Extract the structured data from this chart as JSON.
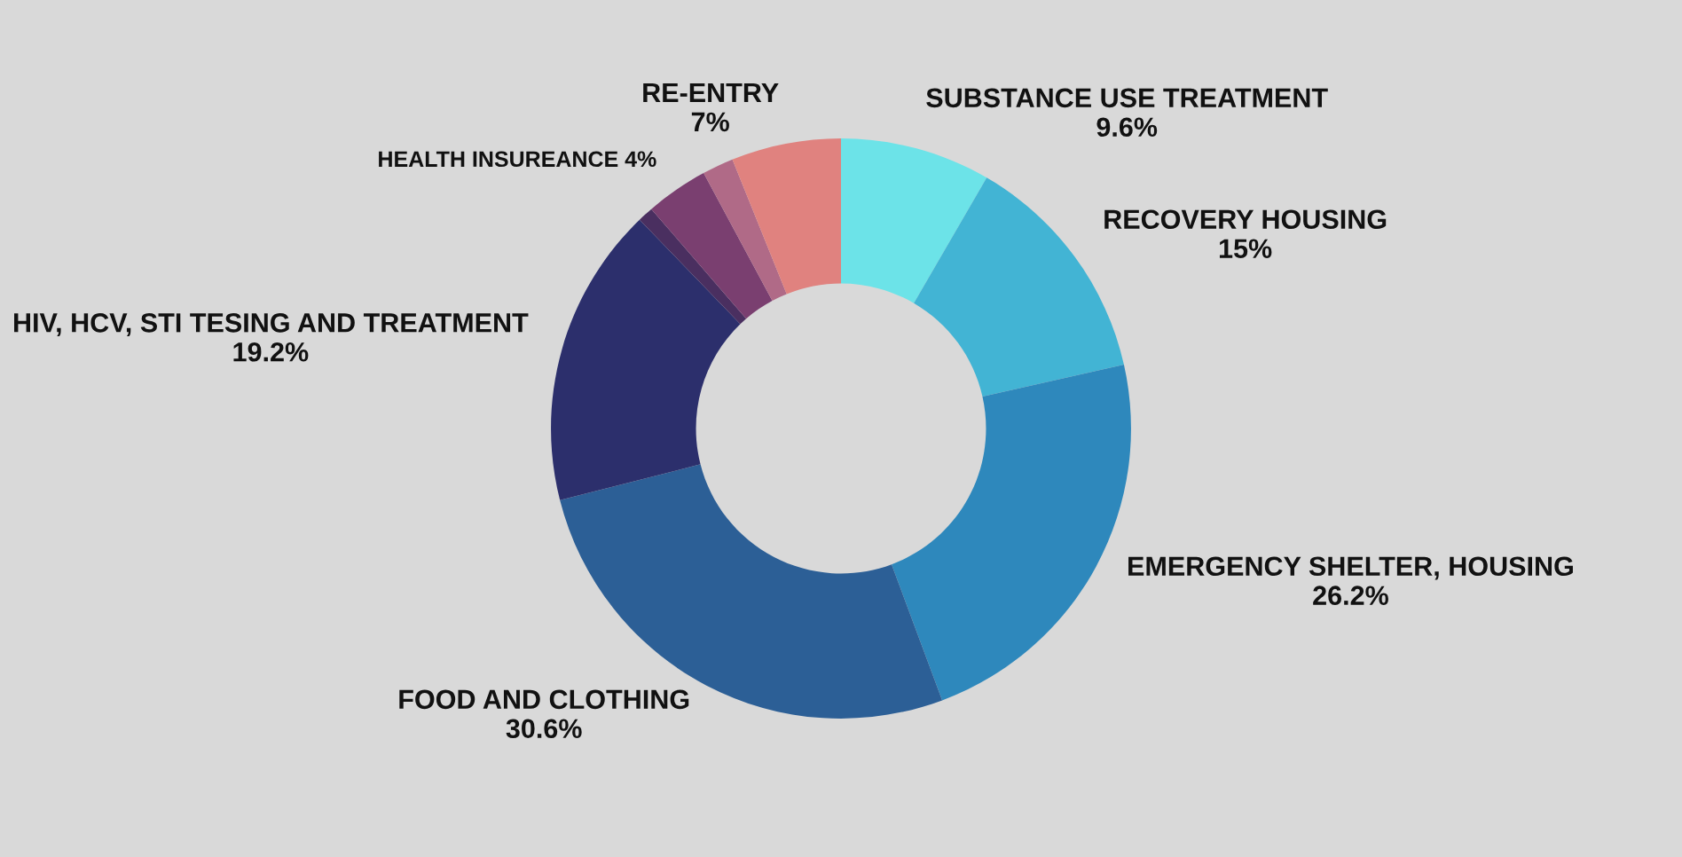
{
  "chart_data": {
    "type": "donut",
    "categories": [
      "SUBSTANCE USE TREATMENT",
      "RECOVERY HOUSING",
      "EMERGENCY SHELTER, HOUSING",
      "FOOD AND CLOTHING",
      "HIV, HCV, STI TESING AND TREATMENT",
      null,
      "HEALTH INSUREANCE",
      null,
      "RE-ENTRY"
    ],
    "values": [
      9.6,
      15,
      26.2,
      30.6,
      19.2,
      1,
      4,
      2,
      7
    ],
    "value_labels": [
      "9.6%",
      "15%",
      "26.2%",
      "30.6%",
      "19.2%",
      null,
      "4%",
      null,
      "7%"
    ],
    "colors": [
      "#6ce3e8",
      "#42b4d4",
      "#2e88bc",
      "#2c5f96",
      "#2c2f6c",
      "#4a2f60",
      "#7a3f70",
      "#b06a87",
      "#e0827f"
    ],
    "legend": false
  }
}
